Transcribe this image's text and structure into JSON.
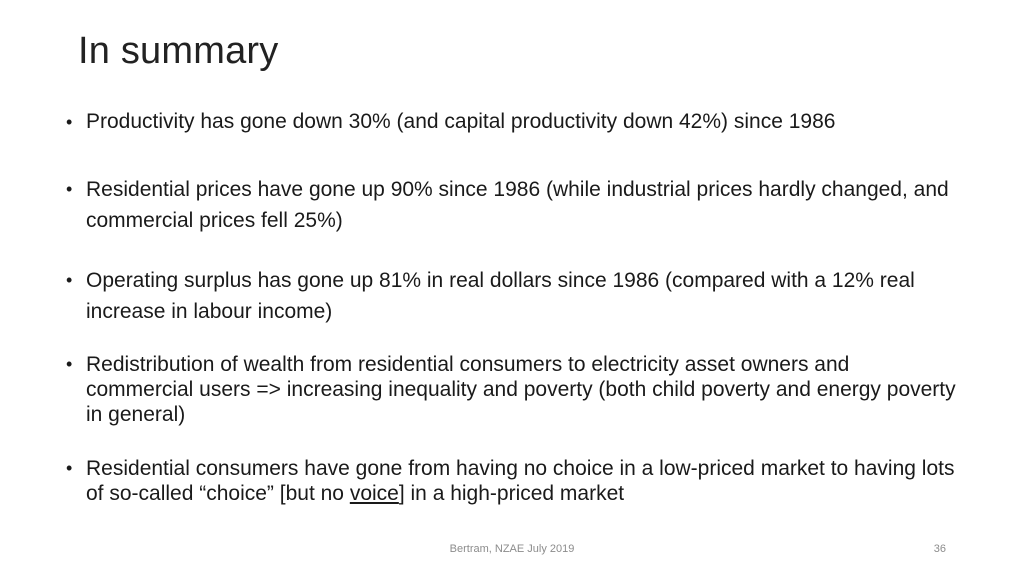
{
  "slide": {
    "title": "In summary",
    "bullet_glyph": "•",
    "bullets": [
      {
        "text": "Productivity has gone down 30% (and capital productivity down 42%) since 1986"
      },
      {
        "text": "Residential prices have gone up 90% since 1986 (while industrial prices hardly changed, and commercial prices fell 25%)"
      },
      {
        "text": "Operating surplus has gone up 81% in real dollars since 1986 (compared with a 12% real increase in labour income)"
      },
      {
        "text": "Redistribution of wealth from residential consumers to electricity asset owners and commercial users => increasing inequality and poverty (both child poverty and energy poverty in general)"
      },
      {
        "text_before": "Residential consumers have gone from having no choice in a low-priced market to having lots of so-called “choice” [but no ",
        "underlined": "voice",
        "text_after": "] in a high-priced market"
      }
    ],
    "footer": "Bertram, NZAE July 2019",
    "page_number": "36"
  }
}
